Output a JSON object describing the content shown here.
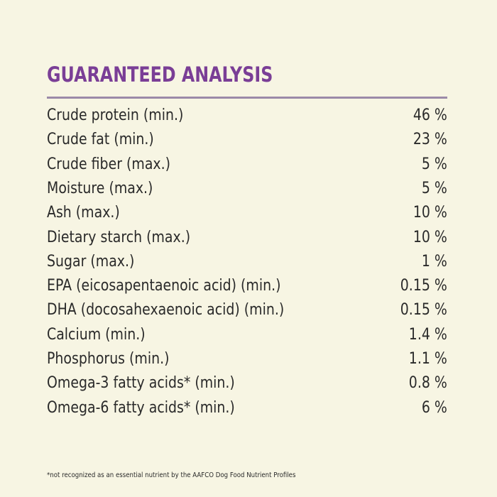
{
  "header": {
    "title": "GUARANTEED ANALYSIS"
  },
  "table": {
    "rows": [
      [
        "Crude protein (min.)",
        "46 %"
      ],
      [
        "Crude fat (min.)",
        "23 %"
      ],
      [
        "Crude fiber (max.)",
        "5 %"
      ],
      [
        "Moisture (max.)",
        "5 %"
      ],
      [
        "Ash (max.)",
        "10 %"
      ],
      [
        "Dietary starch (max.)",
        "10 %"
      ],
      [
        "Sugar (max.)",
        "1 %"
      ],
      [
        "EPA (eicosapentaenoic acid) (min.)",
        "0.15 %"
      ],
      [
        "DHA (docosahexaenoic acid) (min.)",
        "0.15 %"
      ],
      [
        "Calcium (min.)",
        "1.4 %"
      ],
      [
        "Phosphorus (min.)",
        "1.1 %"
      ],
      [
        "Omega-3 fatty acids* (min.)",
        "0.8 %"
      ],
      [
        "Omega-6 fatty acids* (min.)",
        "6 %"
      ]
    ]
  },
  "footnote": "*not recognized as an essential nutrient by the AAFCO Dog Food Nutrient Profiles"
}
